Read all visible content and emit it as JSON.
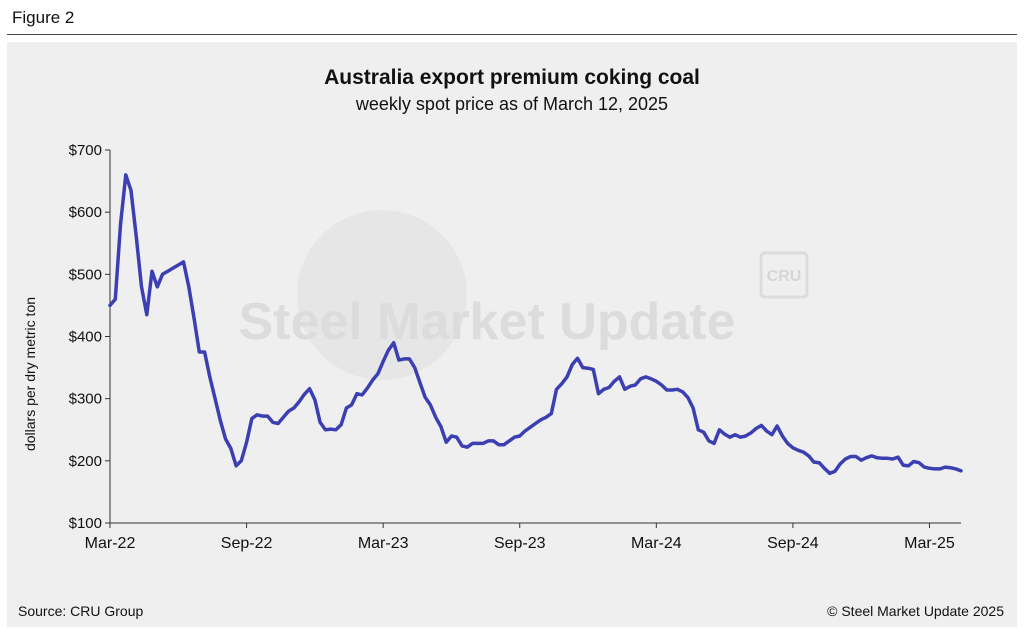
{
  "figure_label": "Figure 2",
  "source": "Source: CRU Group",
  "copyright": "© Steel Market Update 2025",
  "watermark": {
    "text": "Steel Market Update",
    "badge": "CRU"
  },
  "colors": {
    "line": "#3b3fb2",
    "panel": "#efefef",
    "axis": "#333333"
  },
  "chart_data": {
    "type": "line",
    "title": "Australia export premium coking coal",
    "subtitle": "weekly spot price as of March 12, 2025",
    "ylabel": "dollars per dry metric ton",
    "xlabel": "",
    "ylim": [
      100,
      700
    ],
    "yticks": [
      100,
      200,
      300,
      400,
      500,
      600,
      700
    ],
    "ytick_labels": [
      "$100",
      "$200",
      "$300",
      "$400",
      "$500",
      "$600",
      "$700"
    ],
    "x_tick_labels": [
      "Mar-22",
      "Sep-22",
      "Mar-23",
      "Sep-23",
      "Mar-24",
      "Sep-24",
      "Mar-25"
    ],
    "x_tick_weeks": [
      0,
      26,
      52,
      78,
      104,
      130,
      156
    ],
    "grid": false,
    "legend": "none",
    "series": [
      {
        "name": "",
        "values": [
          450,
          460,
          580,
          660,
          635,
          560,
          480,
          435,
          505,
          480,
          500,
          505,
          510,
          515,
          520,
          480,
          430,
          375,
          375,
          335,
          300,
          265,
          235,
          220,
          192,
          200,
          230,
          268,
          274,
          272,
          272,
          262,
          260,
          270,
          280,
          285,
          295,
          307,
          316,
          298,
          262,
          250,
          251,
          250,
          258,
          285,
          290,
          308,
          306,
          317,
          330,
          340,
          360,
          378,
          390,
          362,
          364,
          364,
          350,
          326,
          302,
          290,
          270,
          255,
          230,
          240,
          238,
          224,
          222,
          228,
          228,
          228,
          232,
          232,
          226,
          226,
          232,
          238,
          240,
          248,
          254,
          260,
          266,
          270,
          276,
          315,
          324,
          335,
          355,
          365,
          350,
          349,
          347,
          308,
          315,
          318,
          328,
          335,
          315,
          320,
          322,
          332,
          335,
          332,
          328,
          322,
          314,
          314,
          315,
          311,
          302,
          285,
          250,
          246,
          232,
          228,
          250,
          243,
          238,
          242,
          238,
          240,
          245,
          252,
          257,
          248,
          242,
          256,
          240,
          228,
          221,
          217,
          214,
          208,
          198,
          197,
          188,
          180,
          183,
          195,
          203,
          207,
          207,
          201,
          205,
          208,
          205,
          204,
          204,
          203,
          206,
          193,
          192,
          199,
          197,
          190,
          188,
          187,
          187,
          190,
          189,
          187,
          184
        ]
      }
    ]
  }
}
